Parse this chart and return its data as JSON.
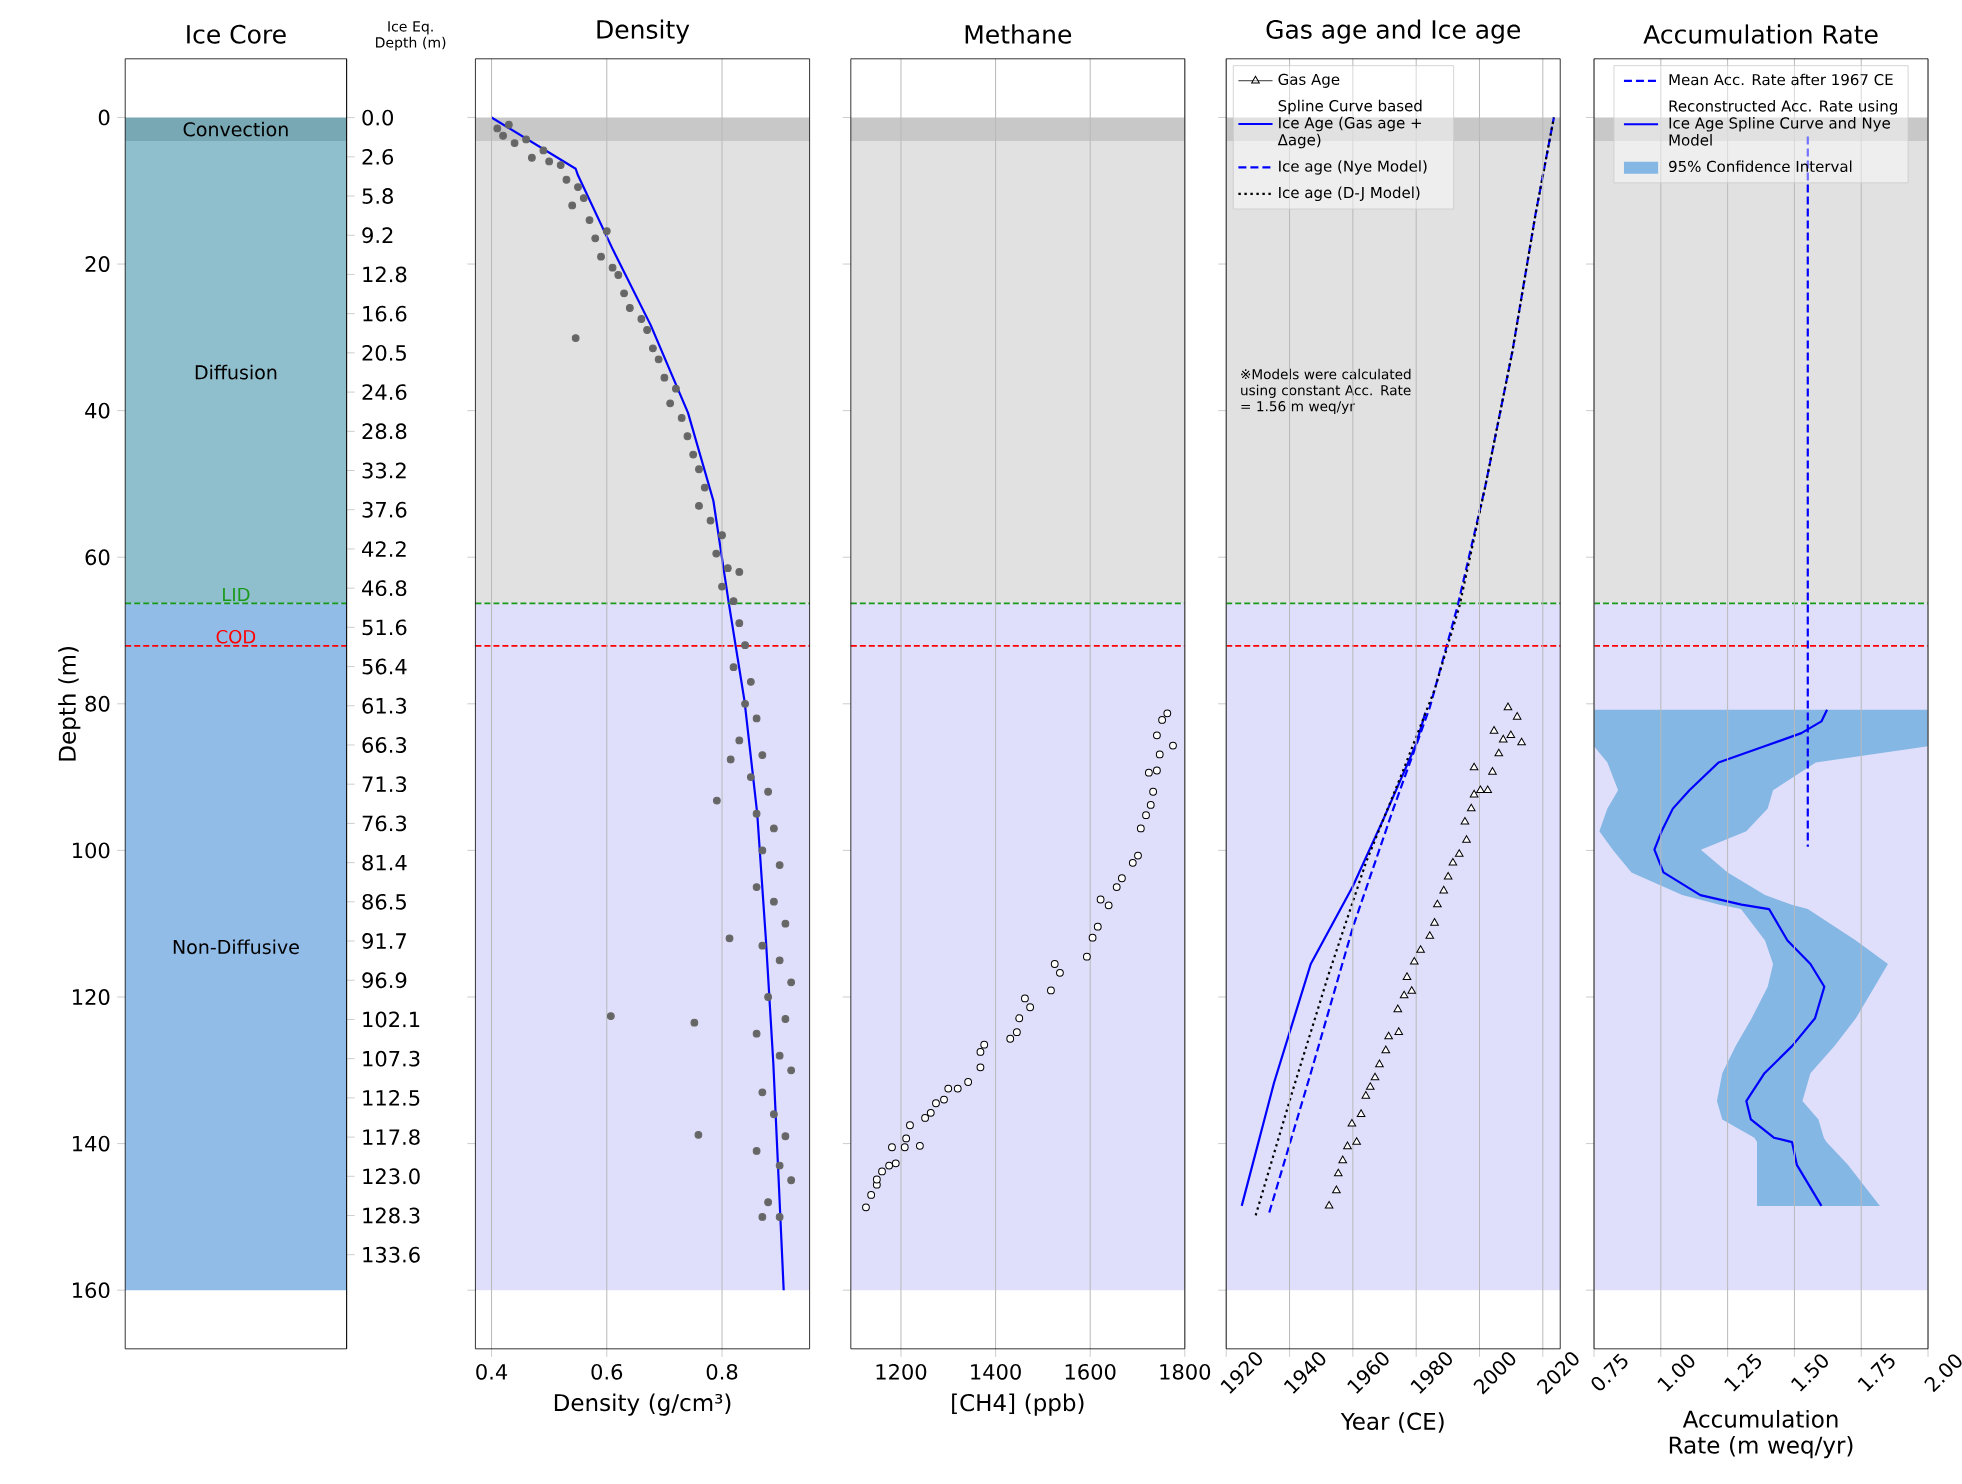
{
  "chart_data": [
    {
      "type": "bar",
      "stacked": true,
      "tick_labels": "y",
      "title": "Ice Core",
      "ylabel": "Depth (m)",
      "y2label": "Ice Eq. Depth (m)",
      "categories": [
        null
      ],
      "ylim": [
        168,
        -8
      ],
      "yticks": [
        0,
        20,
        40,
        60,
        80,
        100,
        120,
        140,
        160
      ],
      "y2_categories": [
        "0.0",
        "2.6",
        "5.8",
        "9.2",
        "12.8",
        "16.6",
        "20.5",
        "24.6",
        "28.8",
        "33.2",
        "37.6",
        "42.2",
        "46.8",
        "51.6",
        "56.4",
        "61.3",
        "66.3",
        "71.3",
        "76.3",
        "81.4",
        "86.5",
        "91.7",
        "96.9",
        "102.1",
        "107.3",
        "112.5",
        "117.8",
        "123.0",
        "128.3",
        "133.6"
      ],
      "series": [
        {
          "name": "Convection",
          "color": "#78a8b4",
          "values": [
            3.2
          ]
        },
        {
          "name": "Diffusion",
          "color": "#8fbecc",
          "values": [
            63.1
          ]
        },
        {
          "name": "Non-Diffusive",
          "color": "#92bce8",
          "values": [
            93.7
          ]
        }
      ],
      "ref_lines": [
        {
          "axis": "y",
          "value": 66.3,
          "label": "LID",
          "color": "#1a9a1a",
          "line_style": "dashed"
        },
        {
          "axis": "y",
          "value": 72.1,
          "label": "COD",
          "color": "#ff0000",
          "line_style": "dashed"
        }
      ]
    },
    {
      "type": "scatter",
      "title": "Density",
      "xlabel": "Density (g/cm³)",
      "xlim": [
        0.372,
        0.952
      ],
      "xticks": [
        0.4,
        0.6,
        0.8
      ],
      "ylim": [
        168,
        -8
      ],
      "yticks": [
        0,
        20,
        40,
        60,
        80,
        100,
        120,
        140,
        160
      ],
      "tick_labels": "x",
      "grid": "x",
      "bands": [
        {
          "axis": "y",
          "from": 0,
          "to": 3.2,
          "color": "#c8c8c8"
        },
        {
          "axis": "y",
          "from": 3.2,
          "to": 66.3,
          "color": "#e1e1e1"
        },
        {
          "axis": "y",
          "from": 66.3,
          "to": 160,
          "color": "#dfdffc"
        }
      ],
      "ref_lines": [
        {
          "axis": "y",
          "value": 66.3,
          "color": "#1a9a1a",
          "line_style": "dashed"
        },
        {
          "axis": "y",
          "value": 72.1,
          "color": "#ff0000",
          "line_style": "dashed"
        }
      ],
      "series": [
        {
          "color": "#666666",
          "marker": "circle",
          "x": [
            0.41,
            0.43,
            0.42,
            0.44,
            0.46,
            0.47,
            0.49,
            0.5,
            0.52,
            0.53,
            0.55,
            0.54,
            0.56,
            0.57,
            0.58,
            0.6,
            0.59,
            0.61,
            0.62,
            0.63,
            0.64,
            0.66,
            0.67,
            0.68,
            0.69,
            0.7,
            0.72,
            0.71,
            0.73,
            0.74,
            0.75,
            0.76,
            0.77,
            0.76,
            0.78,
            0.8,
            0.79,
            0.81,
            0.83,
            0.8,
            0.82,
            0.546,
            0.83,
            0.84,
            0.82,
            0.85,
            0.84,
            0.86,
            0.83,
            0.87,
            0.85,
            0.88,
            0.86,
            0.89,
            0.87,
            0.9,
            0.86,
            0.89,
            0.91,
            0.87,
            0.9,
            0.92,
            0.88,
            0.91,
            0.86,
            0.9,
            0.92,
            0.87,
            0.89,
            0.91,
            0.86,
            0.9,
            0.92,
            0.88,
            0.9,
            0.87,
            0.607,
            0.752,
            0.759,
            0.791,
            0.813,
            0.815
          ],
          "values": [
            1.5,
            1.0,
            2.5,
            3.5,
            3.0,
            5.5,
            4.5,
            6.0,
            6.5,
            8.5,
            9.5,
            12,
            11,
            14,
            16.5,
            15.5,
            19,
            20.5,
            21.5,
            24,
            26,
            27.5,
            29,
            31.5,
            33,
            35.5,
            37,
            39,
            41,
            43.5,
            46,
            48,
            50.5,
            53,
            55,
            57,
            59.5,
            61.5,
            62,
            64,
            66,
            30.1,
            69,
            72,
            75,
            77,
            80,
            82,
            85,
            87,
            90,
            92,
            95,
            97,
            100,
            102,
            105,
            107,
            110,
            113,
            115,
            118,
            120,
            123,
            125,
            128,
            130,
            133,
            136,
            139,
            141,
            143,
            145,
            148,
            150,
            150,
            122.6,
            123.5,
            138.8,
            93.2,
            112,
            87.6
          ]
        },
        {
          "type": "line",
          "color": "#0000ff",
          "x": [
            0.4,
            0.546,
            0.55,
            0.611,
            0.676,
            0.741,
            0.785,
            0.811,
            0.839,
            0.861,
            0.876,
            0.889,
            0.898,
            0.907
          ],
          "values": [
            0,
            7,
            7.9,
            18.1,
            28.3,
            40.3,
            52.3,
            65.9,
            79.6,
            94.9,
            112,
            129,
            144.5,
            160
          ]
        }
      ]
    },
    {
      "type": "scatter",
      "title": "Methane",
      "xlabel": "[CH4] (ppb)",
      "xlim": [
        1094,
        1800
      ],
      "xticks": [
        1200,
        1400,
        1600,
        1800
      ],
      "ylim": [
        168,
        -8
      ],
      "yticks": [
        0,
        20,
        40,
        60,
        80,
        100,
        120,
        140,
        160
      ],
      "tick_labels": "x",
      "grid": "x",
      "bands": [
        {
          "axis": "y",
          "from": 0,
          "to": 3.2,
          "color": "#c8c8c8"
        },
        {
          "axis": "y",
          "from": 3.2,
          "to": 66.3,
          "color": "#e1e1e1"
        },
        {
          "axis": "y",
          "from": 66.3,
          "to": 160,
          "color": "#dfdffc"
        }
      ],
      "ref_lines": [
        {
          "axis": "y",
          "value": 66.3,
          "color": "#1a9a1a",
          "line_style": "dashed"
        },
        {
          "axis": "y",
          "value": 72.1,
          "color": "#ff0000",
          "line_style": "dashed"
        }
      ],
      "series": [
        {
          "color": "#000000",
          "marker": "circle",
          "x": [
            1126,
            1137,
            1149,
            1149,
            1160,
            1175,
            1189,
            1181,
            1208,
            1211,
            1219,
            1240,
            1251,
            1263,
            1274,
            1291,
            1300,
            1320,
            1342,
            1368,
            1368,
            1376,
            1431,
            1445,
            1450,
            1462,
            1473,
            1517,
            1525,
            1536,
            1593,
            1605,
            1616,
            1622,
            1639,
            1656,
            1667,
            1690,
            1701,
            1707,
            1718,
            1728,
            1733,
            1724,
            1741,
            1747,
            1741,
            1752,
            1763,
            1775
          ],
          "values": [
            148.7,
            147.0,
            145.6,
            144.9,
            143.8,
            143.0,
            142.7,
            140.5,
            140.5,
            139.3,
            137.5,
            140.3,
            136.5,
            135.8,
            134.5,
            134.0,
            132.5,
            132.5,
            131.6,
            129.6,
            127.5,
            126.5,
            125.7,
            124.8,
            122.9,
            120.2,
            121.4,
            119.1,
            115.5,
            116.7,
            114.5,
            111.9,
            110.4,
            106.7,
            107.5,
            105.0,
            103.8,
            101.7,
            100.7,
            97.0,
            95.2,
            93.8,
            92.0,
            89.4,
            89.1,
            86.9,
            84.3,
            82.2,
            81.3,
            85.7
          ]
        }
      ]
    },
    {
      "type": "line",
      "title": "Gas age and Ice age",
      "xlabel": "Year (CE)",
      "xlim": [
        1920,
        2025.5
      ],
      "xticks": [
        1920,
        1940,
        1960,
        1980,
        2000,
        2020
      ],
      "ylim": [
        168,
        -8
      ],
      "yticks": [
        0,
        20,
        40,
        60,
        80,
        100,
        120,
        140,
        160
      ],
      "tick_labels": "x",
      "grid": "x",
      "legend": "top left",
      "annotations": [
        "※Models were calculated using constant Acc. Rate = 1.56 m weq/yr"
      ],
      "bands": [
        {
          "axis": "y",
          "from": 0,
          "to": 3.2,
          "color": "#c8c8c8"
        },
        {
          "axis": "y",
          "from": 3.2,
          "to": 66.3,
          "color": "#e1e1e1"
        },
        {
          "axis": "y",
          "from": 66.3,
          "to": 160,
          "color": "#dfdffc"
        }
      ],
      "ref_lines": [
        {
          "axis": "y",
          "value": 66.3,
          "color": "#1a9a1a",
          "line_style": "dashed"
        },
        {
          "axis": "y",
          "value": 72.1,
          "color": "#ff0000",
          "line_style": "dashed"
        }
      ],
      "series": [
        {
          "type": "scatter",
          "name": "Gas Age",
          "color": "#000000",
          "marker": "triangle",
          "x": [
            1952.5,
            1954.8,
            1955.4,
            1956.8,
            1958.3,
            1961.2,
            1959.7,
            1962.6,
            1964.1,
            1965.5,
            1967.0,
            1968.4,
            1970.4,
            1971.3,
            1974.5,
            1974.2,
            1976.2,
            1978.6,
            1977.1,
            1979.4,
            1981.4,
            1984.3,
            1985.8,
            1986.7,
            1988.7,
            1990.1,
            1991.6,
            1993.6,
            1995.9,
            1995.4,
            1997.4,
            1998.3,
            2000.3,
            2002.6,
            1998.3,
            2004.1,
            2006.1,
            2007.5,
            2004.6,
            2009.9,
            2011.9,
            2013.3,
            2009.0
          ],
          "values": [
            148.5,
            146.4,
            144.1,
            142.3,
            140.4,
            139.8,
            137.3,
            136.0,
            133.5,
            132.3,
            131.0,
            129.2,
            127.3,
            125.4,
            124.8,
            121.7,
            119.8,
            119.2,
            117.3,
            115.2,
            113.6,
            111.7,
            109.9,
            107.4,
            105.5,
            103.6,
            101.7,
            100.5,
            98.6,
            96.1,
            94.3,
            92.4,
            91.8,
            91.8,
            88.7,
            89.3,
            86.8,
            84.9,
            83.7,
            84.3,
            81.8,
            85.3,
            80.5
          ]
        },
        {
          "name": "Spline Curve based Ice Age (Gas age + Δage)",
          "color": "#0000ff",
          "line_style": "solid",
          "x": [
            1924.9,
            1935.1,
            1946.7,
            1960.0,
            1969.9,
            1980.0,
            1982.9
          ],
          "values": [
            148.5,
            131.7,
            115.5,
            104.9,
            95.5,
            85.5,
            81.2
          ]
        },
        {
          "name": "Ice age (Nye Model)",
          "color": "#0000ff",
          "line_style": "dashed",
          "x": [
            1933.6,
            1946.7,
            1960.0,
            1972.8,
            1984.3,
            1993.0,
            2001.7,
            2010.4,
            2017.7,
            2023.5
          ],
          "values": [
            149.4,
            130.4,
            110.5,
            94.3,
            80.5,
            66.8,
            50.6,
            31.9,
            13.2,
            0
          ]
        },
        {
          "name": "Ice age (D-J Model)",
          "color": "#000000",
          "line_style": "dotted",
          "x": [
            1929.3,
            1940.9,
            1952.5,
            1964.1,
            1975.7,
            1985.8,
            1993.6,
            2001.7,
            2010.4,
            2017.7,
            2023.5
          ],
          "values": [
            149.8,
            132.9,
            116.7,
            101.7,
            89.3,
            78.1,
            66.8,
            50.6,
            31.9,
            13.2,
            0
          ]
        }
      ]
    },
    {
      "type": "line",
      "title": "Accumulation Rate",
      "xlabel": "Accumulation Rate (m weq/yr)",
      "xlim": [
        0.75,
        2.0
      ],
      "xticks": [
        0.75,
        {
          "value": 1,
          "label": "1.00"
        },
        1.25,
        {
          "value": 1.5,
          "label": "1.50"
        },
        1.75,
        {
          "value": 2,
          "label": "2.00"
        }
      ],
      "ylim": [
        168,
        -8
      ],
      "yticks": [
        0,
        20,
        40,
        60,
        80,
        100,
        120,
        140,
        160
      ],
      "tick_labels": "x",
      "grid": "x",
      "legend": "top",
      "bands": [
        {
          "axis": "y",
          "from": 0,
          "to": 3.2,
          "color": "#c8c8c8"
        },
        {
          "axis": "y",
          "from": 3.2,
          "to": 66.3,
          "color": "#e1e1e1"
        },
        {
          "axis": "y",
          "from": 66.3,
          "to": 160,
          "color": "#dfdffc"
        }
      ],
      "ref_lines": [
        {
          "axis": "y",
          "value": 66.3,
          "color": "#1a9a1a",
          "line_style": "dashed"
        },
        {
          "axis": "y",
          "value": 72.1,
          "color": "#ff0000",
          "line_style": "dashed"
        }
      ],
      "series": [
        {
          "name": "Mean Acc. Rate after 1967 CE",
          "color": "#0000ff",
          "line_style": "dashed",
          "x": [
            1.55,
            1.55
          ],
          "values": [
            2.6,
            99.5
          ]
        },
        {
          "name": "Reconstructed Acc. Rate using Ice Age Spline Curve and Nye Model",
          "color": "#0000ff",
          "line_style": "solid",
          "x": [
            1.622,
            1.601,
            1.526,
            1.388,
            1.216,
            1.107,
            1.045,
            1.003,
            0.976,
            1.01,
            1.148,
            1.302,
            1.405,
            1.474,
            1.56,
            1.612,
            1.577,
            1.491,
            1.388,
            1.32,
            1.337,
            1.423,
            1.491,
            1.509,
            1.601
          ],
          "values": [
            80.8,
            82.4,
            84.0,
            85.8,
            88.0,
            91.8,
            94.3,
            97.4,
            99.9,
            103.0,
            106.1,
            107.4,
            108.0,
            112.3,
            115.5,
            118.6,
            122.9,
            126.7,
            130.4,
            134.2,
            136.7,
            139.2,
            139.8,
            142.9,
            148.5
          ]
        },
        {
          "type": "area",
          "name": "95% Confidence Interval",
          "color": "#85b7e5",
          "values": [
            80.8,
            85.8,
            88.0,
            91.8,
            94.3,
            97.4,
            99.9,
            103.0,
            106.1,
            107.4,
            108.0,
            112.3,
            115.5,
            118.6,
            122.9,
            126.7,
            130.4,
            134.2,
            136.7,
            139.2,
            139.8,
            142.9,
            148.5,
            148.5,
            139.8,
            139.2,
            136.7,
            134.2,
            130.4,
            126.7,
            122.9,
            118.6,
            115.5,
            112.3,
            108.0,
            107.4,
            106.1,
            103.0,
            99.9,
            97.4,
            94.3,
            91.8,
            88.0,
            85.8,
            80.8
          ],
          "x": [
            2.0,
            2.0,
            1.58,
            1.42,
            1.4,
            1.32,
            1.15,
            1.25,
            1.39,
            1.49,
            1.55,
            1.73,
            1.85,
            1.8,
            1.73,
            1.65,
            1.56,
            1.53,
            1.59,
            1.61,
            1.62,
            1.7,
            1.82,
            1.36,
            1.36,
            1.35,
            1.23,
            1.21,
            1.23,
            1.28,
            1.34,
            1.4,
            1.42,
            1.39,
            1.3,
            1.22,
            1.08,
            0.89,
            0.82,
            0.77,
            0.8,
            0.84,
            0.8,
            0.75,
            0.75
          ]
        }
      ]
    }
  ]
}
